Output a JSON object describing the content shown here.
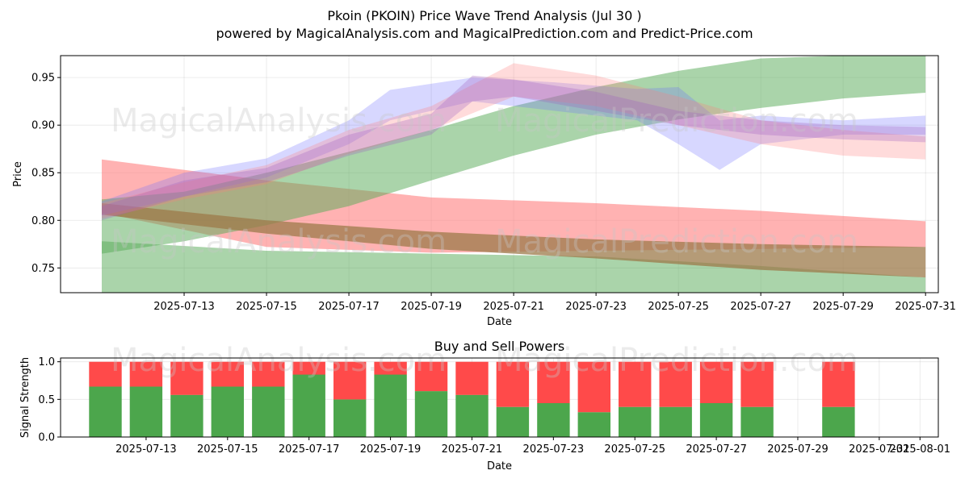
{
  "header": {
    "title": "Pkoin (PKOIN) Price Wave Trend Analysis (Jul 30 )",
    "subtitle": "powered by MagicalAnalysis.com and MagicalPrediction.com and Predict-Price.com"
  },
  "watermarks": [
    "MagicalAnalysis.com",
    "MagicalPrediction.com"
  ],
  "chart_data": [
    {
      "type": "area",
      "name": "price-wave-chart",
      "xlabel": "Date",
      "ylabel": "Price",
      "ylim": [
        0.724,
        0.973
      ],
      "yticks": [
        0.75,
        0.8,
        0.85,
        0.9,
        0.95
      ],
      "ytick_labels": [
        "0.75",
        "0.80",
        "0.85",
        "0.90",
        "0.95"
      ],
      "x_start": "2025-07-11",
      "xticks": [
        "2025-07-13",
        "2025-07-15",
        "2025-07-17",
        "2025-07-19",
        "2025-07-21",
        "2025-07-23",
        "2025-07-25",
        "2025-07-27",
        "2025-07-29",
        "2025-07-31"
      ],
      "xlim": [
        "2025-07-10",
        "2025-07-31"
      ],
      "grid": true,
      "colors": {
        "red": "#ff7f7f",
        "green": "#55aa55",
        "blue": "#6f6fff",
        "brown": "#9c7a4a",
        "purple": "#a060c0"
      },
      "bands": [
        {
          "color": "red",
          "opacity": 0.6,
          "x": [
            "2025-07-11",
            "2025-07-15",
            "2025-07-19",
            "2025-07-23",
            "2025-07-27",
            "2025-07-31"
          ],
          "upper": [
            0.864,
            0.842,
            0.824,
            0.818,
            0.81,
            0.799
          ],
          "lower": [
            0.808,
            0.772,
            0.766,
            0.768,
            0.77,
            0.772
          ]
        },
        {
          "color": "green",
          "opacity": 0.5,
          "x": [
            "2025-07-11",
            "2025-07-15",
            "2025-07-19",
            "2025-07-23",
            "2025-07-27",
            "2025-07-31"
          ],
          "upper": [
            0.778,
            0.768,
            0.765,
            0.762,
            0.752,
            0.74
          ],
          "lower": [
            0.724,
            0.724,
            0.724,
            0.724,
            0.724,
            0.724
          ]
        },
        {
          "color": "green",
          "opacity": 0.5,
          "x": [
            "2025-07-11",
            "2025-07-13",
            "2025-07-15",
            "2025-07-17",
            "2025-07-19",
            "2025-07-21",
            "2025-07-23",
            "2025-07-25",
            "2025-07-27",
            "2025-07-29",
            "2025-07-31"
          ],
          "upper": [
            0.822,
            0.83,
            0.85,
            0.872,
            0.895,
            0.92,
            0.94,
            0.957,
            0.97,
            0.973,
            0.973
          ],
          "lower": [
            0.765,
            0.778,
            0.795,
            0.815,
            0.842,
            0.868,
            0.89,
            0.906,
            0.918,
            0.928,
            0.934
          ]
        },
        {
          "color": "brown",
          "opacity": 0.75,
          "x": [
            "2025-07-11",
            "2025-07-15",
            "2025-07-19",
            "2025-07-23",
            "2025-07-27",
            "2025-07-31"
          ],
          "upper": [
            0.818,
            0.8,
            0.788,
            0.78,
            0.775,
            0.772
          ],
          "lower": [
            0.806,
            0.786,
            0.77,
            0.76,
            0.748,
            0.74
          ]
        },
        {
          "color": "blue",
          "opacity": 0.28,
          "x": [
            "2025-07-11",
            "2025-07-13",
            "2025-07-15",
            "2025-07-17",
            "2025-07-18",
            "2025-07-20",
            "2025-07-22",
            "2025-07-24",
            "2025-07-25",
            "2025-07-26",
            "2025-07-27",
            "2025-07-29",
            "2025-07-31"
          ],
          "upper": [
            0.82,
            0.85,
            0.865,
            0.905,
            0.937,
            0.95,
            0.945,
            0.938,
            0.94,
            0.905,
            0.91,
            0.905,
            0.91
          ],
          "lower": [
            0.805,
            0.825,
            0.845,
            0.88,
            0.905,
            0.925,
            0.915,
            0.905,
            0.88,
            0.853,
            0.88,
            0.89,
            0.89
          ]
        },
        {
          "color": "red",
          "opacity": 0.28,
          "x": [
            "2025-07-11",
            "2025-07-13",
            "2025-07-15",
            "2025-07-17",
            "2025-07-19",
            "2025-07-21",
            "2025-07-23",
            "2025-07-25",
            "2025-07-27",
            "2025-07-29",
            "2025-07-31"
          ],
          "upper": [
            0.818,
            0.84,
            0.858,
            0.895,
            0.92,
            0.965,
            0.952,
            0.93,
            0.905,
            0.895,
            0.888
          ],
          "lower": [
            0.802,
            0.822,
            0.838,
            0.87,
            0.895,
            0.93,
            0.92,
            0.9,
            0.88,
            0.868,
            0.864
          ]
        },
        {
          "color": "purple",
          "opacity": 0.3,
          "x": [
            "2025-07-11",
            "2025-07-13",
            "2025-07-15",
            "2025-07-17",
            "2025-07-19",
            "2025-07-20",
            "2025-07-21",
            "2025-07-23",
            "2025-07-25",
            "2025-07-27",
            "2025-07-29",
            "2025-07-31"
          ],
          "upper": [
            0.815,
            0.842,
            0.855,
            0.89,
            0.912,
            0.952,
            0.948,
            0.935,
            0.915,
            0.905,
            0.9,
            0.898
          ],
          "lower": [
            0.8,
            0.825,
            0.84,
            0.868,
            0.89,
            0.925,
            0.93,
            0.915,
            0.9,
            0.89,
            0.885,
            0.882
          ]
        }
      ]
    },
    {
      "type": "bar",
      "name": "buy-sell-powers",
      "title": "Buy and Sell Powers",
      "xlabel": "Date",
      "ylabel": "Signal Strength",
      "ylim": [
        0,
        1.05
      ],
      "yticks": [
        0.0,
        0.5,
        1.0
      ],
      "ytick_labels": [
        "0.0",
        "0.5",
        "1.0"
      ],
      "xlim": [
        "2025-07-11",
        "2025-08-01"
      ],
      "xticks": [
        "2025-07-13",
        "2025-07-15",
        "2025-07-17",
        "2025-07-19",
        "2025-07-21",
        "2025-07-23",
        "2025-07-25",
        "2025-07-27",
        "2025-07-29",
        "2025-07-31",
        "2025-08-01"
      ],
      "grid": true,
      "colors": {
        "buy": "#4ca64c",
        "sell": "#ff4a4a"
      },
      "dates": [
        "2025-07-12",
        "2025-07-13",
        "2025-07-14",
        "2025-07-15",
        "2025-07-16",
        "2025-07-17",
        "2025-07-18",
        "2025-07-19",
        "2025-07-20",
        "2025-07-21",
        "2025-07-22",
        "2025-07-23",
        "2025-07-24",
        "2025-07-25",
        "2025-07-26",
        "2025-07-27",
        "2025-07-28",
        "2025-07-30"
      ],
      "buy": [
        0.67,
        0.67,
        0.56,
        0.67,
        0.67,
        0.83,
        0.5,
        0.83,
        0.61,
        0.56,
        0.4,
        0.45,
        0.33,
        0.4,
        0.4,
        0.45,
        0.4,
        0.4
      ],
      "sell": [
        0.33,
        0.33,
        0.44,
        0.33,
        0.33,
        0.17,
        0.5,
        0.17,
        0.39,
        0.44,
        0.6,
        0.55,
        0.67,
        0.6,
        0.6,
        0.55,
        0.6,
        0.6
      ]
    }
  ]
}
